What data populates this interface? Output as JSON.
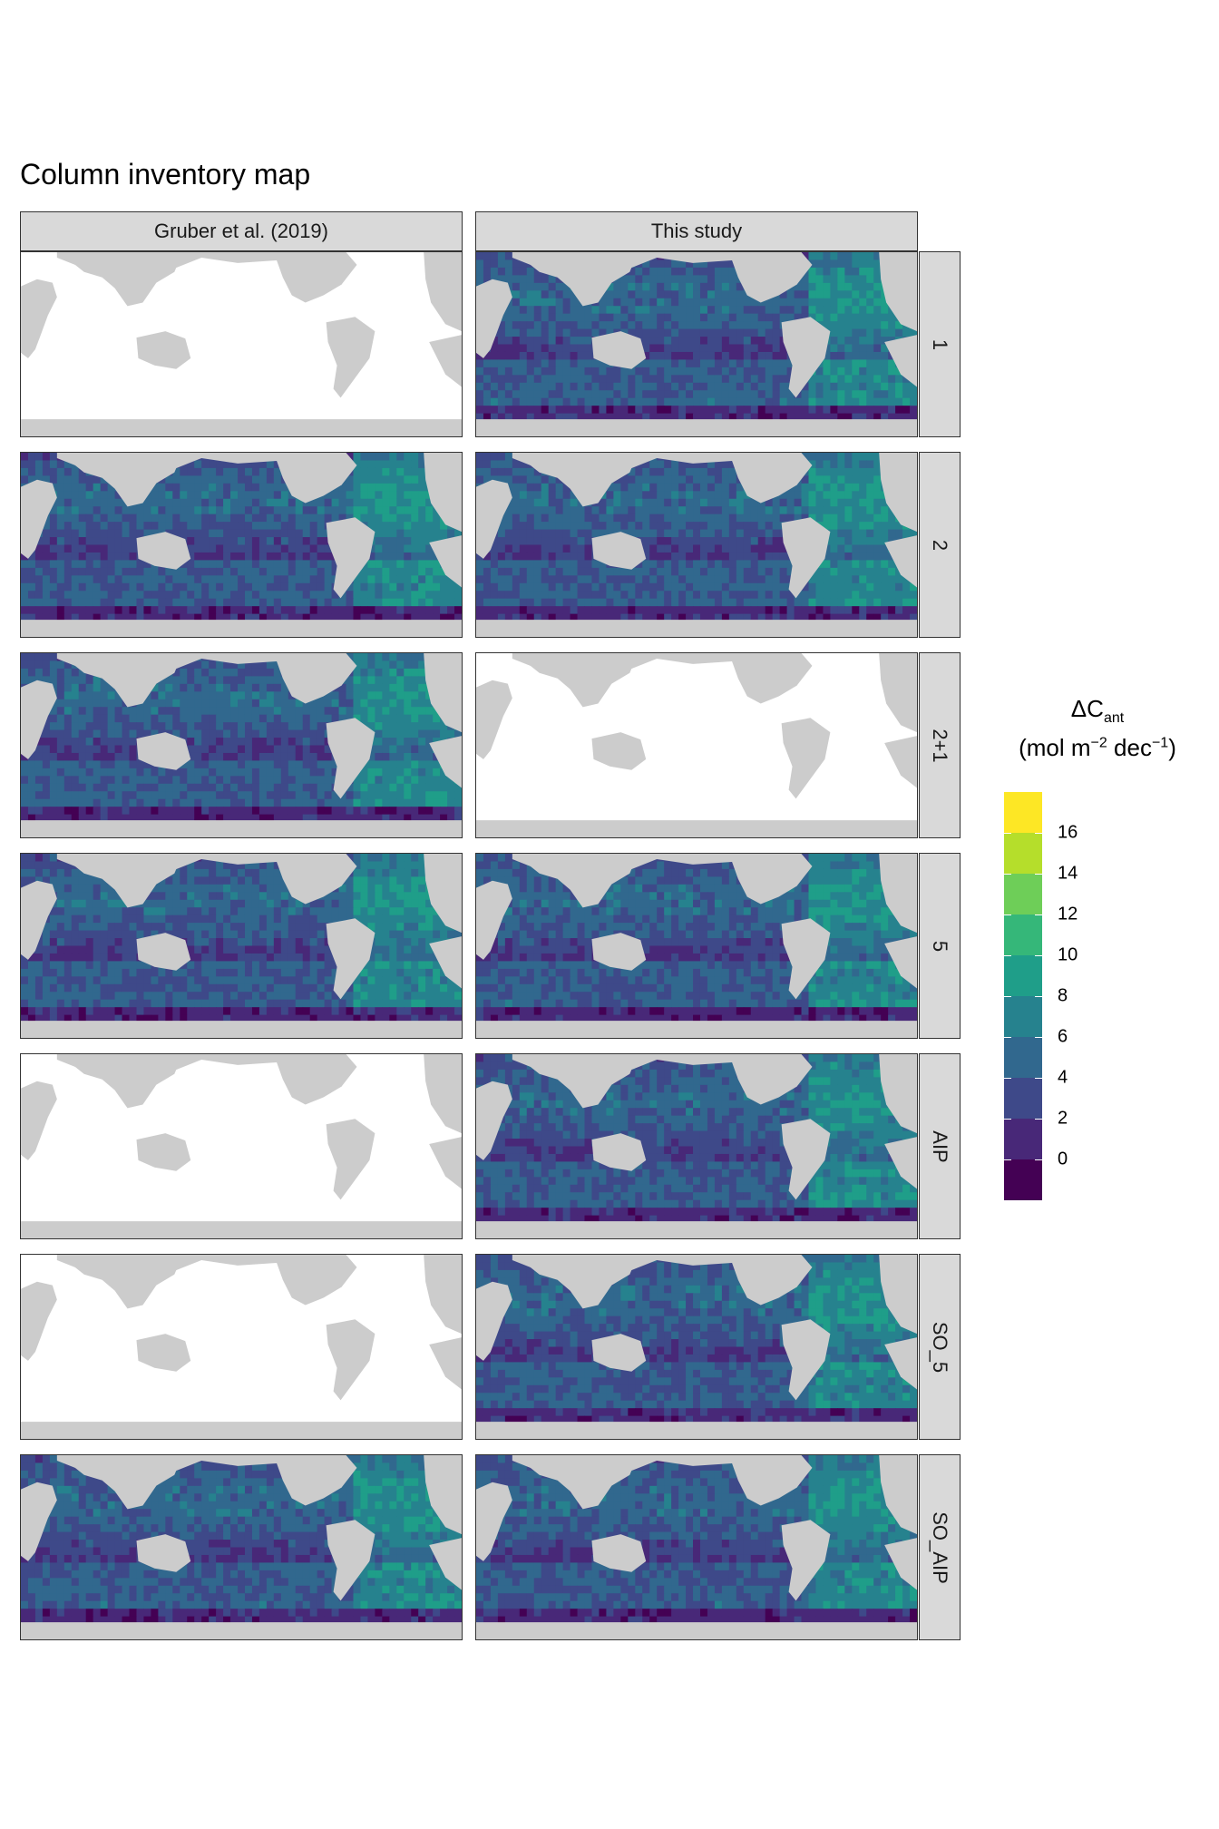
{
  "chart_data": {
    "type": "heatmap",
    "title": "Column inventory map",
    "columns": [
      "Gruber et al. (2019)",
      "This study"
    ],
    "rows": [
      "1",
      "2",
      "2+1",
      "5",
      "AIP",
      "SO_5",
      "SO_AIP"
    ],
    "available": [
      [
        false,
        true
      ],
      [
        true,
        true
      ],
      [
        true,
        false
      ],
      [
        true,
        true
      ],
      [
        false,
        true
      ],
      [
        false,
        true
      ],
      [
        true,
        true
      ]
    ],
    "legend": {
      "title_main": "ΔC",
      "title_sub": "ant",
      "unit_open": "(mol m",
      "unit_sup1": "−2",
      "unit_mid": " dec",
      "unit_sup2": "−1",
      "unit_close": ")",
      "ticks": [
        "16",
        "14",
        "12",
        "10",
        "8",
        "6",
        "4",
        "2",
        "0"
      ],
      "tick_values": [
        16,
        14,
        12,
        10,
        8,
        6,
        4,
        2,
        0
      ],
      "range": [
        -2,
        18
      ],
      "colors": [
        "#440154",
        "#482878",
        "#3e4989",
        "#31688e",
        "#26828e",
        "#1f9e89",
        "#35b779",
        "#6ece58",
        "#b5de2b",
        "#fde725"
      ]
    },
    "land_color": "#cccccc",
    "ocean_nodata_color": "#ffffff"
  }
}
